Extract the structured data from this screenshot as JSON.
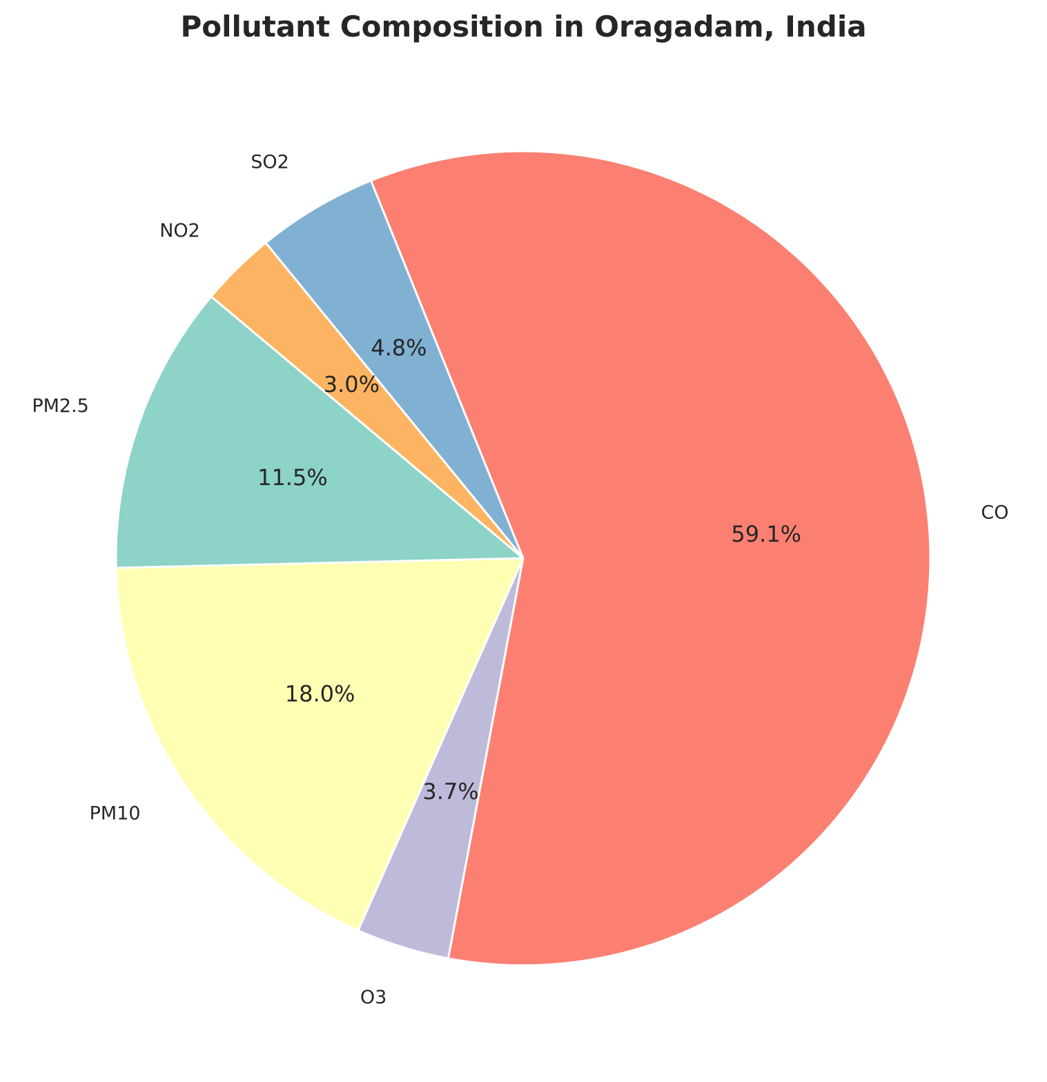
{
  "chart_data": {
    "type": "pie",
    "title": "Pollutant Composition in Oragadam, India",
    "categories": [
      "PM2.5",
      "PM10",
      "O3",
      "CO",
      "SO2",
      "NO2"
    ],
    "values": [
      11.5,
      18.0,
      3.7,
      59.1,
      4.8,
      3.0
    ],
    "percent_labels": [
      "11.5%",
      "18.0%",
      "3.7%",
      "59.1%",
      "4.8%",
      "3.0%"
    ],
    "colors": [
      "#8dd3c7",
      "#ffffb3",
      "#bebada",
      "#fb8072",
      "#80b1d3",
      "#fdb462"
    ],
    "start_angle_deg": 140,
    "direction": "counterclockwise",
    "legend": "none"
  }
}
